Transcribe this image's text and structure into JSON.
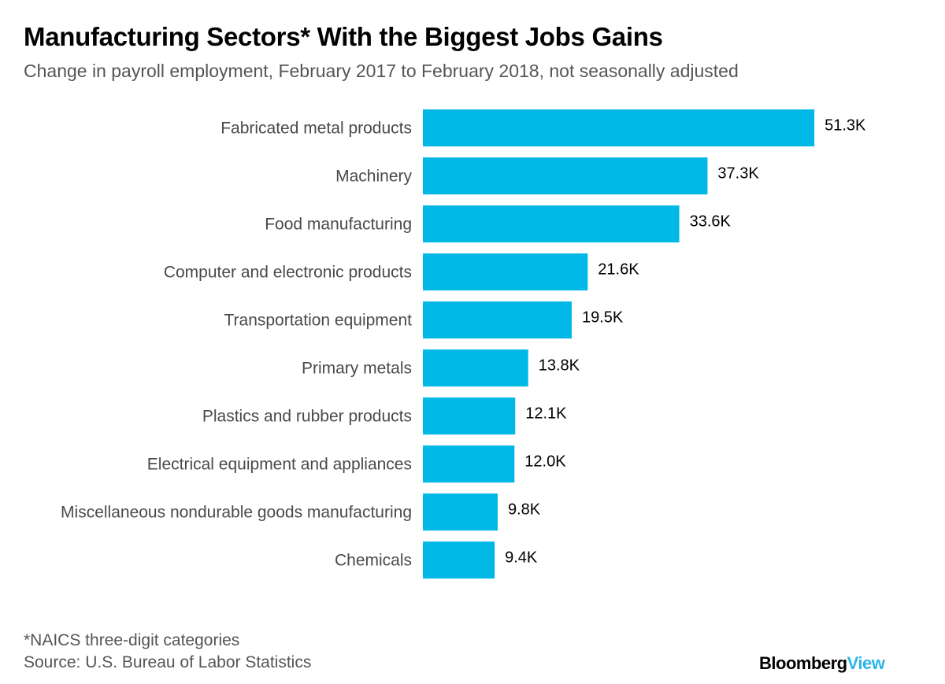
{
  "title": "Manufacturing Sectors* With the Biggest Jobs Gains",
  "subtitle": "Change in payroll employment, February 2017 to February 2018, not seasonally adjusted",
  "footnote": "*NAICS three-digit categories",
  "source": "Source: U.S. Bureau of Labor Statistics",
  "logo": {
    "part1": "Bloomberg",
    "part2": "View"
  },
  "chart_data": {
    "type": "bar",
    "orientation": "horizontal",
    "categories": [
      "Fabricated metal products",
      "Machinery",
      "Food manufacturing",
      "Computer and electronic products",
      "Transportation equipment",
      "Primary metals",
      "Plastics and rubber products",
      "Electrical equipment and appliances",
      "Miscellaneous nondurable goods manufacturing",
      "Chemicals"
    ],
    "values": [
      51.3,
      37.3,
      33.6,
      21.6,
      19.5,
      13.8,
      12.1,
      12.0,
      9.8,
      9.4
    ],
    "labels": [
      "51.3K",
      "37.3K",
      "33.6K",
      "21.6K",
      "19.5K",
      "13.8K",
      "12.1K",
      "12.0K",
      "9.8K",
      "9.4K"
    ],
    "unit": "K",
    "grid": false,
    "bar_color": "#00b8e6"
  }
}
